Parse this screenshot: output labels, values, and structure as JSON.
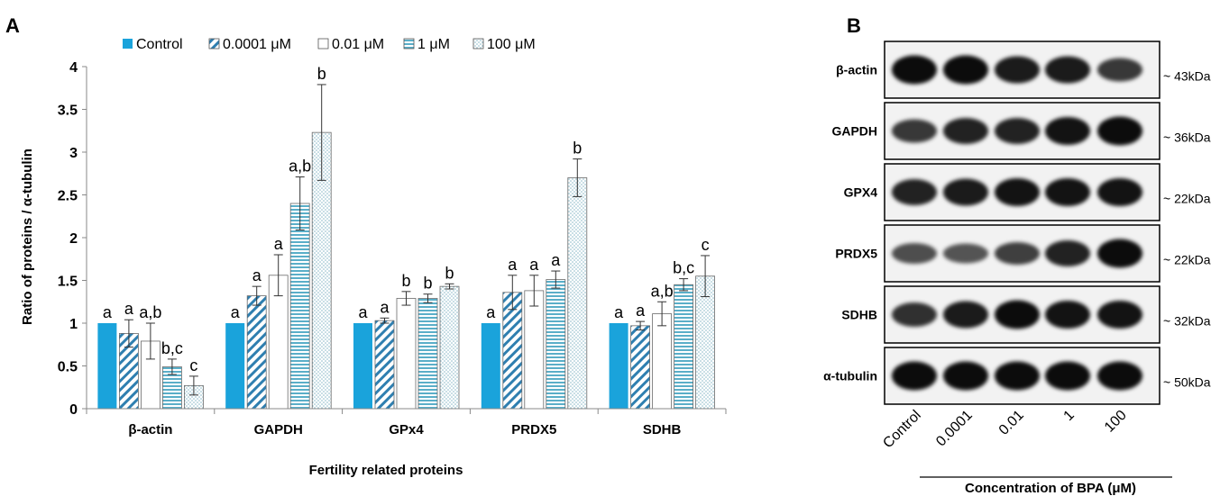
{
  "panel_a_label": "A",
  "panel_b_label": "B",
  "colors": {
    "control": "#1aa3db",
    "stripe": "#2f7fb0",
    "hstripe": "#5aaec8",
    "dots": "#7fb3c4",
    "axis": "#888888"
  },
  "chart_data": {
    "type": "bar",
    "xlabel": "Fertility related proteins",
    "ylabel": "Ratio of proteins / α-tubulin",
    "ylim": [
      0,
      4
    ],
    "yticks": [
      "0",
      "0.5",
      "1",
      "1.5",
      "2",
      "2.5",
      "3",
      "3.5",
      "4"
    ],
    "grid": false,
    "legend_position": "top",
    "categories": [
      "β-actin",
      "GAPDH",
      "GPx4",
      "PRDX5",
      "SDHB"
    ],
    "series": [
      {
        "name": "Control",
        "pattern": "solid",
        "values": [
          1.0,
          1.0,
          1.0,
          1.0,
          1.0
        ],
        "errors": [
          0,
          0,
          0,
          0,
          0
        ],
        "labels": [
          "a",
          "a",
          "a",
          "a",
          "a"
        ]
      },
      {
        "name": "0.0001 μM",
        "pattern": "diagonal-stripes",
        "values": [
          0.88,
          1.32,
          1.03,
          1.36,
          0.97
        ],
        "errors": [
          0.16,
          0.11,
          0.03,
          0.2,
          0.05
        ],
        "labels": [
          "a",
          "a",
          "a",
          "a",
          "a"
        ]
      },
      {
        "name": "0.01 μM",
        "pattern": "empty",
        "values": [
          0.79,
          1.56,
          1.29,
          1.38,
          1.11
        ],
        "errors": [
          0.21,
          0.24,
          0.08,
          0.18,
          0.14
        ],
        "labels": [
          "a,b",
          "a",
          "b",
          "a",
          "a,b"
        ]
      },
      {
        "name": "1 μM",
        "pattern": "horizontal-stripes",
        "values": [
          0.49,
          2.4,
          1.29,
          1.51,
          1.45
        ],
        "errors": [
          0.09,
          0.31,
          0.05,
          0.1,
          0.07
        ],
        "labels": [
          "b,c",
          "a,b",
          "b",
          "a",
          "b,c"
        ]
      },
      {
        "name": "100 μM",
        "pattern": "dots",
        "values": [
          0.27,
          3.23,
          1.43,
          2.7,
          1.55
        ],
        "errors": [
          0.11,
          0.56,
          0.03,
          0.22,
          0.24
        ],
        "labels": [
          "c",
          "b",
          "b",
          "b",
          "c"
        ]
      }
    ]
  },
  "blot": {
    "rows": [
      {
        "protein": "β-actin",
        "size": "~ 43kDa",
        "bands": [
          1.0,
          1.0,
          0.9,
          0.9,
          0.7
        ]
      },
      {
        "protein": "GAPDH",
        "size": "~ 36kDa",
        "bands": [
          0.7,
          0.85,
          0.85,
          0.95,
          1.0
        ]
      },
      {
        "protein": "GPX4",
        "size": "~ 22kDa",
        "bands": [
          0.85,
          0.9,
          0.95,
          0.95,
          0.95
        ]
      },
      {
        "protein": "PRDX5",
        "size": "~ 22kDa",
        "bands": [
          0.55,
          0.5,
          0.65,
          0.85,
          1.0
        ]
      },
      {
        "protein": "SDHB",
        "size": "~ 32kDa",
        "bands": [
          0.75,
          0.9,
          1.0,
          0.95,
          0.95
        ]
      },
      {
        "protein": "α-tubulin",
        "size": "~ 50kDa",
        "bands": [
          1.0,
          1.0,
          1.0,
          1.0,
          1.0
        ]
      }
    ],
    "lanes": [
      "Control",
      "0.0001",
      "0.01",
      "1",
      "100"
    ],
    "xlabel": "Concentration of BPA (μM)"
  }
}
